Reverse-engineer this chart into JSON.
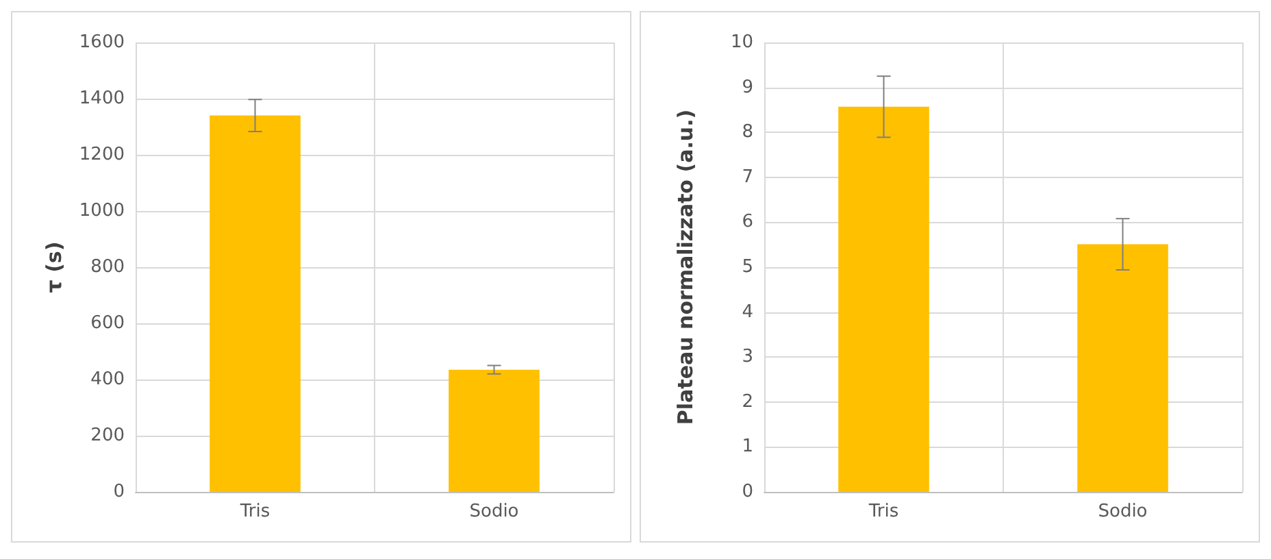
{
  "chart_data": [
    {
      "type": "bar",
      "categories": [
        "Tris",
        "Sodio"
      ],
      "values": [
        1340,
        435
      ],
      "errors": [
        57,
        15
      ],
      "color": "#ffc000",
      "ylabel": "τ (s)",
      "ylim": [
        0,
        1600
      ],
      "yticks": [
        0,
        200,
        400,
        600,
        800,
        1000,
        1200,
        1400,
        1600
      ],
      "grid": true
    },
    {
      "type": "bar",
      "categories": [
        "Tris",
        "Sodio"
      ],
      "values": [
        8.57,
        5.51
      ],
      "errors": [
        0.68,
        0.57
      ],
      "color": "#ffc000",
      "ylabel": "Plateau normalizzato (a.u.)",
      "ylim": [
        0,
        10
      ],
      "yticks": [
        0,
        1,
        2,
        3,
        4,
        5,
        6,
        7,
        8,
        9,
        10
      ],
      "grid": true
    }
  ]
}
